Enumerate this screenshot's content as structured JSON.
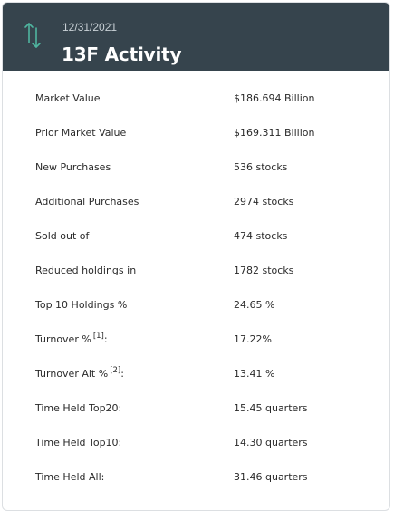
{
  "header": {
    "date": "12/31/2021",
    "title": "13F Activity",
    "icon": "up-down-arrows-icon",
    "background_color": "#36444d",
    "icon_color": "#4fb5a0"
  },
  "rows": [
    {
      "label": "Market Value",
      "value": "$186.694 Billion",
      "footnote": ""
    },
    {
      "label": "Prior Market Value",
      "value": "$169.311 Billion",
      "footnote": ""
    },
    {
      "label": "New Purchases",
      "value": "536 stocks",
      "footnote": ""
    },
    {
      "label": "Additional Purchases",
      "value": "2974 stocks",
      "footnote": ""
    },
    {
      "label": "Sold out of",
      "value": "474 stocks",
      "footnote": ""
    },
    {
      "label": "Reduced holdings in",
      "value": "1782 stocks",
      "footnote": ""
    },
    {
      "label": "Top 10 Holdings %",
      "value": "24.65 %",
      "footnote": ""
    },
    {
      "label": "Turnover %",
      "value": "17.22%",
      "footnote": "[1]",
      "suffix": ":"
    },
    {
      "label": "Turnover Alt %",
      "value": "13.41 %",
      "footnote": "[2]",
      "suffix": ":"
    },
    {
      "label": "Time Held Top20:",
      "value": "15.45 quarters",
      "footnote": ""
    },
    {
      "label": "Time Held Top10:",
      "value": "14.30 quarters",
      "footnote": ""
    },
    {
      "label": "Time Held All:",
      "value": "31.46 quarters",
      "footnote": ""
    }
  ]
}
